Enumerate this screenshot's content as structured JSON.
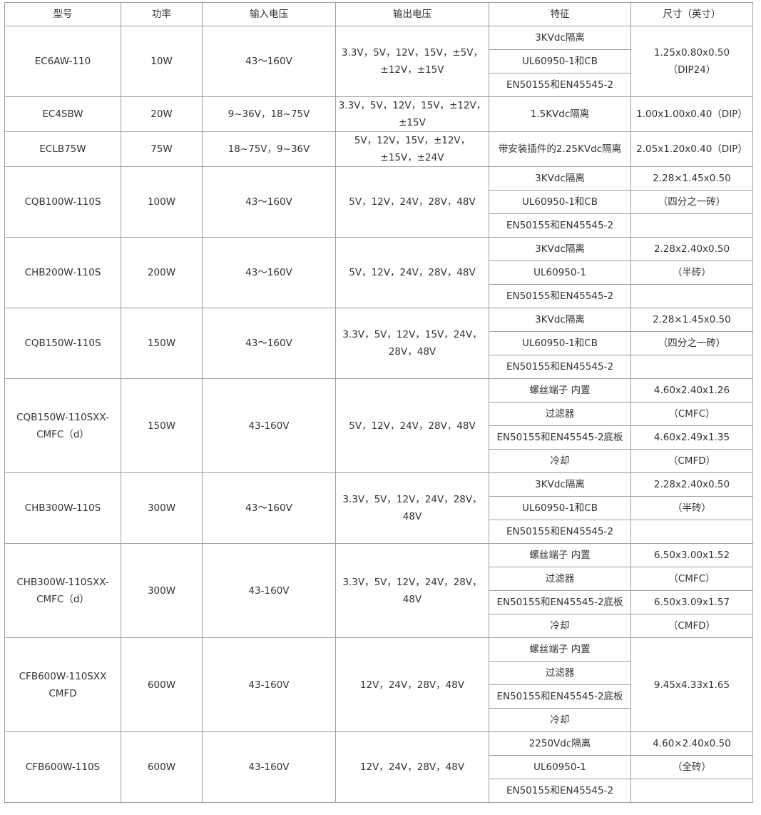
{
  "headers": [
    "型号",
    "功率",
    "输入电压",
    "输出电压",
    "特征",
    "尺寸（英寸）"
  ],
  "rows": [
    {
      "model": "EC6AW-110",
      "power": "10W",
      "input": "43～160V",
      "output": "3.3V，5V，12V，15V，±5V，±12V，±15V",
      "features": [
        "3KVdc隔离",
        "UL60950-1和CB",
        "EN50155和EN45545-2"
      ],
      "sizes": [
        "1.25x0.80x0.50（DIP24）"
      ]
    },
    {
      "model": "EC4SBW",
      "power": "20W",
      "input": "9~36V，18~75V",
      "output": "3.3V，5V，12V，15V，±12V，±15V",
      "features": [
        "1.5KVdc隔离"
      ],
      "sizes": [
        "1.00x1.00x0.40（DIP）"
      ]
    },
    {
      "model": "ECLB75W",
      "power": "75W",
      "input": "18~75V，9~36V",
      "output": "5V，12V，15V，±12V，±15V，±24V",
      "features": [
        "带安装插件的2.25KVdc隔离"
      ],
      "sizes": [
        "2.05x1.20x0.40（DIP）"
      ]
    },
    {
      "model": "CQB100W-110S",
      "power": "100W",
      "input": "43～160V",
      "output": "5V，12V，24V，28V，48V",
      "features": [
        "3KVdc隔离",
        "UL60950-1和CB",
        "EN50155和EN45545-2"
      ],
      "sizes": [
        "2.28×1.45x0.50",
        "（四分之一砖）",
        ""
      ]
    },
    {
      "model": "CHB200W-110S",
      "power": "200W",
      "input": "43～160V",
      "output": "5V，12V，24V，28V，48V",
      "features": [
        "3KVdc隔离",
        "UL60950-1",
        "EN50155和EN45545-2"
      ],
      "sizes": [
        "2.28x2.40x0.50",
        "（半砖）",
        ""
      ]
    },
    {
      "model": "CQB150W-110S",
      "power": "150W",
      "input": "43～160V",
      "output": "3.3V，5V，12V，15V，24V，28V，48V",
      "features": [
        "3KVdc隔离",
        "UL60950-1和CB",
        "EN50155和EN45545-2"
      ],
      "sizes": [
        "2.28×1.45x0.50",
        "（四分之一砖）",
        ""
      ]
    },
    {
      "model": "CQB150W-110SXX-CMFC（d）",
      "power": "150W",
      "input": "43-160V",
      "output": "5V，12V，24V，28V，48V",
      "features": [
        "螺丝端子 内置",
        "过滤器",
        "EN50155和EN45545-2底板",
        "冷却"
      ],
      "sizes": [
        "4.60x2.40x1.26",
        "（CMFC）",
        "4.60x2.49x1.35",
        "（CMFD）"
      ]
    },
    {
      "model": "CHB300W-110S",
      "power": "300W",
      "input": "43～160V",
      "output": "3.3V，5V，12V，24V，28V，48V",
      "features": [
        "3KVdc隔离",
        "UL60950-1和CB",
        "EN50155和EN45545-2"
      ],
      "sizes": [
        "2.28x2.40x0.50",
        "（半砖）",
        ""
      ]
    },
    {
      "model": "CHB300W-110SXX-CMFC（d）",
      "power": "300W",
      "input": "43-160V",
      "output": "3.3V，5V，12V，24V，28V，48V",
      "features": [
        "螺丝端子 内置",
        "过滤器",
        "EN50155和EN45545-2底板",
        "冷却"
      ],
      "sizes": [
        "6.50x3.00x1.52",
        "（CMFC）",
        "6.50x3.09x1.57",
        "（CMFD）"
      ]
    },
    {
      "model": "CFB600W-110SXX CMFD",
      "power": "600W",
      "input": "43-160V",
      "output": "12V，24V，28V，48V",
      "features": [
        "螺丝端子 内置",
        "过滤器",
        "EN50155和EN45545-2底板",
        "冷却"
      ],
      "sizes": [
        "9.45x4.33x1.65"
      ]
    },
    {
      "model": "CFB600W-110S",
      "power": "600W",
      "input": "43-160V",
      "output": "12V，24V，28V，48V",
      "features": [
        "2250Vdc隔离",
        "UL60950-1",
        "EN50155和EN45545-2"
      ],
      "sizes": [
        "4.60×2.40x0.50",
        "（全砖）",
        ""
      ]
    }
  ]
}
